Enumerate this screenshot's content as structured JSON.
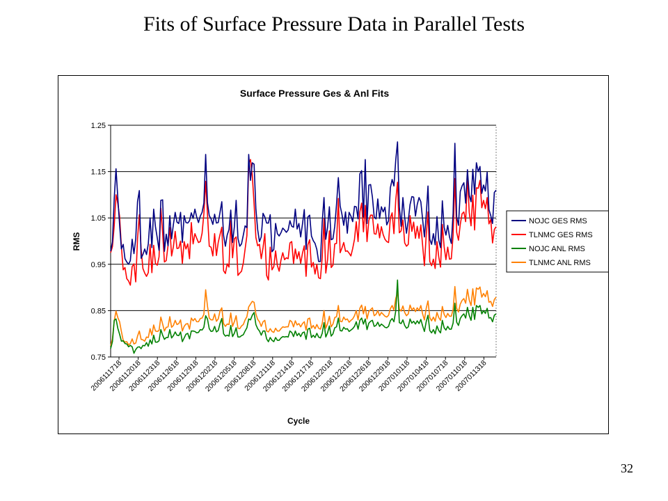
{
  "slide": {
    "title": "Fits of Surface Pressure Data in Parallel Tests",
    "page_number": "32"
  },
  "chart_data": {
    "type": "line",
    "title": "Surface Pressure Ges & Anl Fits",
    "xlabel": "Cycle",
    "ylabel": "RMS",
    "ylim": [
      0.75,
      1.25
    ],
    "yticks": [
      "0.75",
      "0.85",
      "0.95",
      "1.05",
      "1.15",
      "1.25"
    ],
    "grid": "horizontal",
    "legend_position": "right",
    "xtick_labels": [
      "2006111718",
      "2006112018",
      "2006112318",
      "2006112618",
      "2006112918",
      "2006120218",
      "2006120518",
      "2006120818",
      "2006121118",
      "2006121418",
      "2006121718",
      "2006122018",
      "2006122318",
      "2006122618",
      "2006122918",
      "2007010118",
      "2007010418",
      "2007010718",
      "2007011018",
      "2007011318"
    ],
    "series": [
      {
        "name": "NOJC GES RMS",
        "color": "#000080",
        "values": [
          0.978,
          0.998,
          1.092,
          1.156,
          1.093,
          1.035,
          0.983,
          0.993,
          0.962,
          0.955,
          0.95,
          0.958,
          1.004,
          0.973,
          1.005,
          1.085,
          1.109,
          0.963,
          0.971,
          0.983,
          0.971,
          0.994,
          1.05,
          0.986,
          1.069,
          1.031,
          1.007,
          0.98,
          1.088,
          1.089,
          0.978,
          1.015,
          0.99,
          1.055,
          1.005,
          1.036,
          1.062,
          1.041,
          1.038,
          1.062,
          0.997,
          1.055,
          1.04,
          1.039,
          1.044,
          1.061,
          1.049,
          1.069,
          1.052,
          1.04,
          1.054,
          1.062,
          1.082,
          1.187,
          1.083,
          1.055,
          1.048,
          1.036,
          1.058,
          1.039,
          1.04,
          1.062,
          1.085,
          1.012,
          0.989,
          1.013,
          1.025,
          1.067,
          0.997,
          1.031,
          1.088,
          1.006,
          0.989,
          0.994,
          1.013,
          1.033,
          1.029,
          1.187,
          1.131,
          1.169,
          1.166,
          1.07,
          1.025,
          0.999,
          1.009,
          1.06,
          1.052,
          1.039,
          1.039,
          1.057,
          0.977,
          0.982,
          1.038,
          1.016,
          1.011,
          1.018,
          1.028,
          1.024,
          1.019,
          1.024,
          1.044,
          1.032,
          1.03,
          1.069,
          1.026,
          1.038,
          1.009,
          1.037,
          1.068,
          0.982,
          1.052,
          1.056,
          1.011,
          1.001,
          0.995,
          0.982,
          0.956,
          0.956,
          1.041,
          1.094,
          1.004,
          1.03,
          1.074,
          1.003,
          1.005,
          1.032,
          1.08,
          1.137,
          1.076,
          1.058,
          1.034,
          1.063,
          1.017,
          1.062,
          1.054,
          1.042,
          1.075,
          1.074,
          1.048,
          1.145,
          1.152,
          1.052,
          1.176,
          1.038,
          1.121,
          1.122,
          1.095,
          1.052,
          1.048,
          1.091,
          1.049,
          1.074,
          1.063,
          1.073,
          1.035,
          1.044,
          1.115,
          1.133,
          1.119,
          1.174,
          1.214,
          1.075,
          1.032,
          1.094,
          1.051,
          1.017,
          1.044,
          1.079,
          1.096,
          1.095,
          1.054,
          1.079,
          1.094,
          1.085,
          1.047,
          1.009,
          1.055,
          1.119,
          1.004,
          0.993,
          1.016,
          0.992,
          1.053,
          1.002,
          0.986,
          1.087,
          1.03,
          1.013,
          1.034,
          1.009,
          0.995,
          1.06,
          1.211,
          1.052,
          1.034,
          1.107,
          1.119,
          1.126,
          1.082,
          1.154,
          1.099,
          1.085,
          1.155,
          1.101,
          1.169,
          1.15,
          1.161,
          1.103,
          1.121,
          1.108,
          1.149,
          1.068,
          1.055,
          1.038,
          1.105,
          1.11
        ]
      },
      {
        "name": "TLNMC GES RMS",
        "color": "#ff0000",
        "values": [
          0.975,
          0.988,
          1.033,
          1.1,
          1.081,
          1.053,
          0.988,
          0.938,
          0.943,
          0.919,
          0.914,
          0.905,
          0.945,
          0.951,
          0.912,
          1.005,
          1.057,
          0.983,
          0.941,
          0.931,
          0.924,
          0.932,
          0.993,
          0.932,
          0.991,
          0.952,
          0.948,
          0.966,
          1.071,
          1.017,
          0.955,
          0.958,
          0.99,
          1.029,
          0.968,
          0.988,
          1.021,
          0.984,
          0.985,
          1.0,
          0.952,
          0.999,
          0.983,
          0.994,
          0.962,
          1.04,
          0.994,
          1.016,
          1.006,
          0.997,
          0.999,
          1.017,
          1.059,
          1.129,
          1.059,
          0.989,
          0.987,
          0.968,
          1.016,
          0.969,
          0.997,
          1.014,
          1.03,
          0.936,
          0.93,
          0.951,
          0.944,
          1.044,
          0.964,
          1.005,
          1.009,
          0.926,
          0.931,
          0.935,
          0.953,
          0.983,
          1.012,
          1.167,
          1.176,
          1.142,
          1.081,
          1.008,
          0.99,
          0.993,
          0.962,
          0.986,
          1.016,
          0.926,
          0.916,
          0.987,
          0.938,
          0.945,
          0.979,
          0.947,
          0.935,
          0.959,
          0.975,
          0.96,
          0.964,
          0.962,
          0.996,
          0.999,
          0.952,
          0.983,
          0.962,
          0.977,
          0.952,
          0.974,
          0.99,
          0.924,
          0.992,
          1.003,
          0.944,
          0.954,
          0.929,
          0.95,
          0.921,
          0.919,
          0.965,
          1.048,
          0.931,
          0.96,
          1.022,
          0.943,
          0.948,
          0.994,
          0.995,
          1.092,
          0.975,
          0.985,
          0.997,
          0.978,
          0.979,
          0.974,
          0.968,
          0.984,
          1.004,
          1.042,
          0.999,
          1.063,
          1.082,
          1.02,
          1.077,
          0.999,
          1.045,
          1.056,
          1.056,
          1.016,
          1.015,
          1.037,
          1.007,
          1.031,
          1.014,
          1.004,
          0.999,
          0.997,
          1.05,
          1.061,
          1.016,
          1.088,
          1.127,
          1.018,
          1.022,
          1.046,
          0.996,
          0.989,
          0.993,
          1.055,
          1.021,
          1.041,
          1.006,
          1.032,
          1.006,
          1.035,
          0.991,
          0.947,
          1.013,
          1.063,
          0.956,
          0.947,
          0.961,
          0.941,
          0.999,
          0.966,
          0.944,
          1.036,
          0.988,
          0.96,
          0.987,
          0.961,
          0.962,
          1.012,
          1.135,
          1.019,
          1.002,
          1.036,
          1.059,
          1.063,
          1.042,
          1.141,
          1.062,
          1.033,
          1.099,
          1.024,
          1.115,
          1.114,
          1.131,
          1.072,
          1.088,
          1.07,
          1.094,
          1.037,
          1.047,
          0.996,
          1.025,
          1.031
        ]
      },
      {
        "name": "NOJC ANL RMS",
        "color": "#008000",
        "values": [
          0.768,
          0.783,
          0.829,
          0.832,
          0.812,
          0.799,
          0.784,
          0.785,
          0.779,
          0.778,
          0.772,
          0.775,
          0.772,
          0.758,
          0.766,
          0.771,
          0.772,
          0.768,
          0.775,
          0.774,
          0.781,
          0.773,
          0.787,
          0.778,
          0.797,
          0.782,
          0.782,
          0.785,
          0.809,
          0.797,
          0.788,
          0.792,
          0.792,
          0.809,
          0.791,
          0.796,
          0.804,
          0.797,
          0.796,
          0.804,
          0.783,
          0.791,
          0.799,
          0.801,
          0.789,
          0.806,
          0.806,
          0.805,
          0.802,
          0.803,
          0.809,
          0.808,
          0.814,
          0.839,
          0.832,
          0.811,
          0.805,
          0.806,
          0.816,
          0.804,
          0.807,
          0.822,
          0.833,
          0.8,
          0.795,
          0.797,
          0.795,
          0.818,
          0.794,
          0.801,
          0.813,
          0.793,
          0.793,
          0.796,
          0.798,
          0.806,
          0.813,
          0.832,
          0.83,
          0.84,
          0.846,
          0.82,
          0.811,
          0.806,
          0.797,
          0.806,
          0.806,
          0.789,
          0.783,
          0.792,
          0.786,
          0.783,
          0.792,
          0.786,
          0.786,
          0.791,
          0.794,
          0.793,
          0.794,
          0.793,
          0.806,
          0.803,
          0.794,
          0.806,
          0.796,
          0.801,
          0.794,
          0.802,
          0.804,
          0.788,
          0.81,
          0.812,
          0.792,
          0.797,
          0.792,
          0.801,
          0.793,
          0.791,
          0.801,
          0.824,
          0.793,
          0.802,
          0.817,
          0.795,
          0.8,
          0.813,
          0.815,
          0.834,
          0.807,
          0.806,
          0.814,
          0.81,
          0.811,
          0.805,
          0.808,
          0.811,
          0.816,
          0.826,
          0.81,
          0.829,
          0.834,
          0.821,
          0.832,
          0.809,
          0.823,
          0.827,
          0.829,
          0.816,
          0.818,
          0.825,
          0.816,
          0.821,
          0.818,
          0.814,
          0.813,
          0.816,
          0.828,
          0.833,
          0.826,
          0.849,
          0.916,
          0.824,
          0.822,
          0.83,
          0.818,
          0.812,
          0.815,
          0.832,
          0.823,
          0.827,
          0.821,
          0.828,
          0.822,
          0.831,
          0.817,
          0.805,
          0.826,
          0.84,
          0.807,
          0.802,
          0.809,
          0.8,
          0.817,
          0.807,
          0.802,
          0.829,
          0.813,
          0.808,
          0.816,
          0.81,
          0.81,
          0.823,
          0.866,
          0.825,
          0.818,
          0.833,
          0.839,
          0.843,
          0.834,
          0.857,
          0.84,
          0.829,
          0.857,
          0.831,
          0.861,
          0.857,
          0.861,
          0.843,
          0.85,
          0.844,
          0.855,
          0.834,
          0.835,
          0.826,
          0.84,
          0.843
        ]
      },
      {
        "name": "TLNMC ANL RMS",
        "color": "#ff8000",
        "values": [
          0.774,
          0.789,
          0.828,
          0.849,
          0.835,
          0.826,
          0.805,
          0.786,
          0.782,
          0.783,
          0.776,
          0.779,
          0.789,
          0.778,
          0.78,
          0.795,
          0.806,
          0.788,
          0.787,
          0.784,
          0.793,
          0.792,
          0.811,
          0.797,
          0.819,
          0.806,
          0.805,
          0.807,
          0.836,
          0.821,
          0.806,
          0.814,
          0.815,
          0.837,
          0.814,
          0.818,
          0.829,
          0.82,
          0.822,
          0.83,
          0.806,
          0.816,
          0.821,
          0.822,
          0.81,
          0.834,
          0.828,
          0.833,
          0.826,
          0.826,
          0.833,
          0.834,
          0.842,
          0.895,
          0.86,
          0.834,
          0.83,
          0.83,
          0.843,
          0.827,
          0.832,
          0.849,
          0.856,
          0.822,
          0.816,
          0.821,
          0.82,
          0.845,
          0.816,
          0.826,
          0.839,
          0.812,
          0.811,
          0.817,
          0.82,
          0.83,
          0.837,
          0.858,
          0.864,
          0.87,
          0.868,
          0.843,
          0.831,
          0.826,
          0.816,
          0.826,
          0.829,
          0.806,
          0.804,
          0.811,
          0.805,
          0.803,
          0.812,
          0.806,
          0.806,
          0.811,
          0.815,
          0.814,
          0.815,
          0.815,
          0.829,
          0.826,
          0.815,
          0.828,
          0.819,
          0.822,
          0.815,
          0.822,
          0.826,
          0.808,
          0.832,
          0.834,
          0.812,
          0.818,
          0.811,
          0.82,
          0.812,
          0.81,
          0.822,
          0.85,
          0.812,
          0.822,
          0.838,
          0.815,
          0.821,
          0.835,
          0.837,
          0.861,
          0.827,
          0.826,
          0.836,
          0.83,
          0.832,
          0.825,
          0.829,
          0.832,
          0.839,
          0.85,
          0.83,
          0.855,
          0.862,
          0.843,
          0.859,
          0.832,
          0.848,
          0.852,
          0.856,
          0.839,
          0.842,
          0.85,
          0.839,
          0.846,
          0.842,
          0.838,
          0.836,
          0.84,
          0.854,
          0.861,
          0.851,
          0.876,
          0.889,
          0.853,
          0.849,
          0.86,
          0.846,
          0.839,
          0.843,
          0.862,
          0.851,
          0.856,
          0.848,
          0.856,
          0.85,
          0.861,
          0.843,
          0.83,
          0.855,
          0.871,
          0.835,
          0.828,
          0.836,
          0.827,
          0.846,
          0.835,
          0.829,
          0.859,
          0.842,
          0.835,
          0.844,
          0.838,
          0.838,
          0.852,
          0.902,
          0.855,
          0.847,
          0.864,
          0.872,
          0.876,
          0.866,
          0.896,
          0.873,
          0.861,
          0.897,
          0.862,
          0.899,
          0.896,
          0.901,
          0.879,
          0.887,
          0.88,
          0.893,
          0.868,
          0.87,
          0.859,
          0.874,
          0.879
        ]
      }
    ]
  }
}
